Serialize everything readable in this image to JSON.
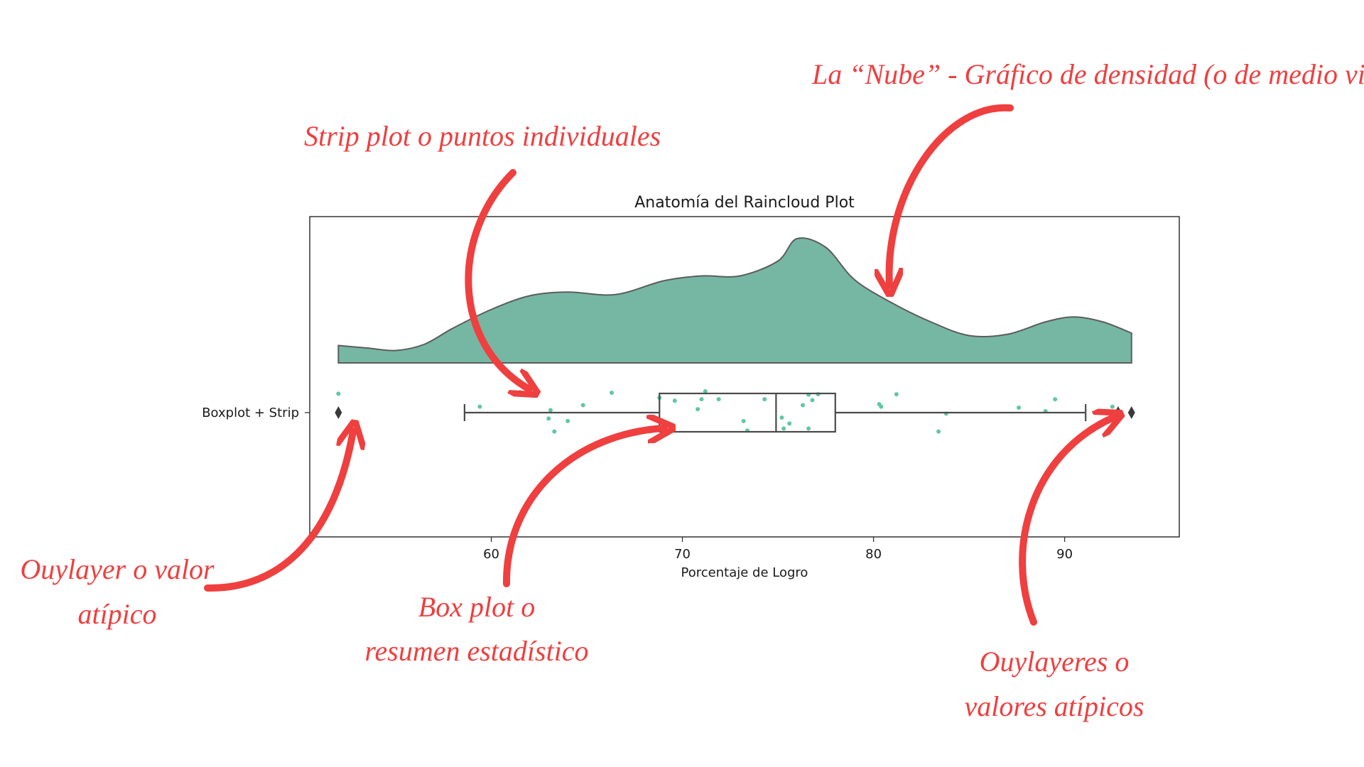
{
  "chart_data": {
    "type": "raincloud",
    "title": "Anatomía del Raincloud Plot",
    "xlabel": "Porcentaje de Logro",
    "category": "Boxplot + Strip",
    "xlim": [
      50.5,
      96
    ],
    "xticks": [
      60,
      70,
      80,
      90
    ],
    "colors": {
      "cloud": "#76b7a3",
      "cloud_edge": "#5c5c5c",
      "points": "#5fc7a6",
      "box": "#4a4a4a",
      "annotation": "#ef3f3f"
    },
    "density": {
      "x": [
        52.0,
        53.5,
        55.0,
        56.5,
        58.0,
        60.0,
        62.0,
        64.0,
        66.5,
        69.0,
        71.0,
        73.0,
        75.0,
        76.0,
        77.5,
        79.0,
        81.0,
        83.0,
        85.0,
        87.0,
        89.0,
        90.5,
        92.0,
        93.5
      ],
      "y": [
        0.14,
        0.12,
        0.1,
        0.15,
        0.28,
        0.43,
        0.54,
        0.57,
        0.55,
        0.66,
        0.7,
        0.7,
        0.82,
        1.0,
        0.93,
        0.67,
        0.48,
        0.33,
        0.22,
        0.23,
        0.33,
        0.37,
        0.33,
        0.24
      ]
    },
    "boxplot": {
      "whisker_low": 58.6,
      "q1": 68.8,
      "median": 74.9,
      "q3": 78.0,
      "whisker_high": 91.1,
      "outliers": [
        52.0,
        92.8,
        93.5
      ]
    },
    "points": [
      {
        "x": 52.0,
        "y": 0.38
      },
      {
        "x": 59.4,
        "y": 0.12
      },
      {
        "x": 61.5,
        "y": 0.41
      },
      {
        "x": 63.1,
        "y": 0.05
      },
      {
        "x": 63.0,
        "y": -0.12
      },
      {
        "x": 63.3,
        "y": -0.38
      },
      {
        "x": 64.0,
        "y": -0.17
      },
      {
        "x": 64.8,
        "y": 0.15
      },
      {
        "x": 66.3,
        "y": 0.4
      },
      {
        "x": 68.8,
        "y": 0.3
      },
      {
        "x": 69.6,
        "y": 0.24
      },
      {
        "x": 71.0,
        "y": 0.27
      },
      {
        "x": 71.2,
        "y": 0.43
      },
      {
        "x": 71.9,
        "y": 0.27
      },
      {
        "x": 70.8,
        "y": 0.07
      },
      {
        "x": 73.2,
        "y": -0.17
      },
      {
        "x": 73.4,
        "y": -0.36
      },
      {
        "x": 74.3,
        "y": 0.27
      },
      {
        "x": 75.2,
        "y": -0.1
      },
      {
        "x": 75.3,
        "y": -0.32
      },
      {
        "x": 75.6,
        "y": -0.22
      },
      {
        "x": 76.3,
        "y": 0.15
      },
      {
        "x": 76.6,
        "y": 0.36
      },
      {
        "x": 76.8,
        "y": 0.25
      },
      {
        "x": 77.1,
        "y": 0.37
      },
      {
        "x": 76.6,
        "y": -0.32
      },
      {
        "x": 80.3,
        "y": 0.17
      },
      {
        "x": 80.4,
        "y": 0.12
      },
      {
        "x": 81.2,
        "y": 0.37
      },
      {
        "x": 83.4,
        "y": -0.38
      },
      {
        "x": 83.8,
        "y": -0.02
      },
      {
        "x": 87.6,
        "y": 0.1
      },
      {
        "x": 89.0,
        "y": 0.03
      },
      {
        "x": 89.5,
        "y": 0.27
      },
      {
        "x": 92.5,
        "y": 0.12
      }
    ]
  },
  "annotations": {
    "cloud": "La “Nube” - Gráfico de densidad (o de medio violín)",
    "strip": "Strip plot o puntos individuales",
    "outlier_left_1": "Ouylayer o valor",
    "outlier_left_2": "atípico",
    "box_1": "Box plot o",
    "box_2": "resumen estadístico",
    "outliers_right_1": "Ouylayeres o",
    "outliers_right_2": "valores atípicos"
  }
}
